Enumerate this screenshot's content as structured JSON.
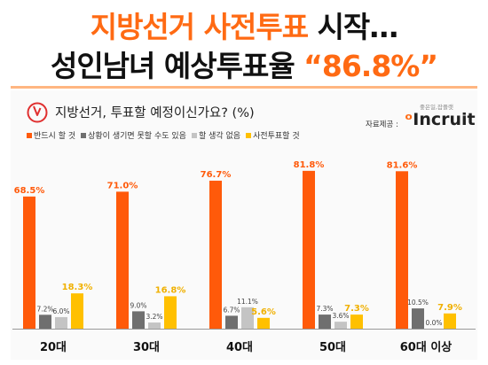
{
  "headline": {
    "line1_part1": "지방선거 사전투표",
    "line1_part2": " 시작…",
    "line2_part1": "성인남녀 예상투표율 ",
    "line2_part2": "“86.8%”"
  },
  "source": {
    "label": "자료제공 :",
    "logo_tagline": "좋은일,잡플랫",
    "logo_text": "Incruit"
  },
  "icons": {
    "ballot": "ballot-checkmark-icon"
  },
  "chart_data": {
    "type": "bar",
    "title": "지방선거, 투표할 예정이신가요? (%)",
    "categories": [
      "20대",
      "30대",
      "40대",
      "50대",
      "60대 이상"
    ],
    "series": [
      {
        "name": "반드시 할 것",
        "color": "#ff5a0a",
        "values": [
          68.5,
          71.0,
          76.7,
          81.8,
          81.6
        ],
        "labels": [
          "68.5%",
          "71.0%",
          "76.7%",
          "81.8%",
          "81.6%"
        ]
      },
      {
        "name": "상황이 생기면 못할 수도 있음",
        "color": "#6f6f6f",
        "values": [
          7.2,
          9.0,
          6.7,
          7.3,
          10.5
        ],
        "labels": [
          "7.2%",
          "9.0%",
          "6.7%",
          "7.3%",
          "10.5%"
        ]
      },
      {
        "name": "할 생각 없음",
        "color": "#c4c4c4",
        "values": [
          6.0,
          3.2,
          11.1,
          3.6,
          0.0
        ],
        "labels": [
          "6.0%",
          "3.2%",
          "11.1%",
          "3.6%",
          "0.0%"
        ]
      },
      {
        "name": "사전투표할 것",
        "color": "#ffc000",
        "values": [
          18.3,
          16.8,
          5.6,
          7.3,
          7.9
        ],
        "labels": [
          "18.3%",
          "16.8%",
          "5.6%",
          "7.3%",
          "7.9%"
        ]
      }
    ],
    "ylim": [
      0,
      90
    ],
    "grid": false,
    "legend_position": "top-left"
  }
}
